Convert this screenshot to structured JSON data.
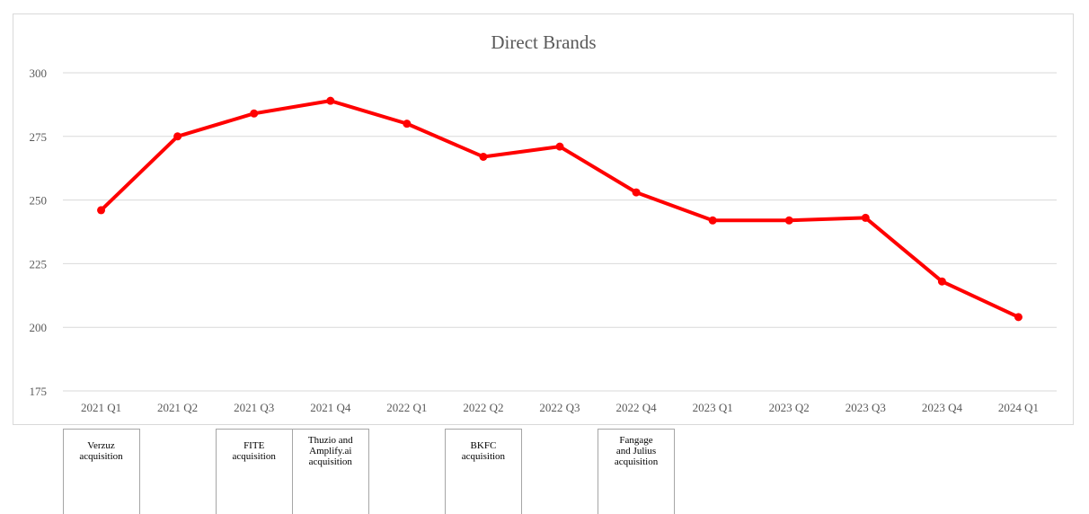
{
  "chart_data": {
    "type": "line",
    "title": "Direct Brands",
    "xlabel": "",
    "ylabel": "",
    "categories": [
      "2021 Q1",
      "2021 Q2",
      "2021 Q3",
      "2021 Q4",
      "2022 Q1",
      "2022 Q2",
      "2022 Q3",
      "2022 Q4",
      "2023 Q1",
      "2023 Q2",
      "2023 Q3",
      "2023 Q4",
      "2024 Q1"
    ],
    "series": [
      {
        "values": [
          246,
          275,
          284,
          289,
          280,
          267,
          271,
          253,
          242,
          242,
          243,
          218,
          204
        ],
        "color": "#ff0000"
      }
    ],
    "ylim": [
      175,
      300
    ],
    "yticks": [
      175,
      200,
      225,
      250,
      275,
      300
    ],
    "grid": true,
    "legend": "none"
  },
  "annotations": [
    {
      "category": "2021 Q1",
      "text": "Verzuz\nacquisition"
    },
    {
      "category": "2021 Q3",
      "text": "FITE\nacquisition"
    },
    {
      "category": "2021 Q4",
      "text": "Thuzio and\nAmplify.ai\nacquisition"
    },
    {
      "category": "2022 Q2",
      "text": "BKFC\nacquisition"
    },
    {
      "category": "2022 Q4",
      "text": "Fangage\nand Julius\nacquisition"
    }
  ],
  "colors": {
    "line": "#ff0000",
    "grid": "#d9d9d9",
    "text": "#595959",
    "frame": "#d9d9d9",
    "annotation_border": "#a6a6a6"
  }
}
